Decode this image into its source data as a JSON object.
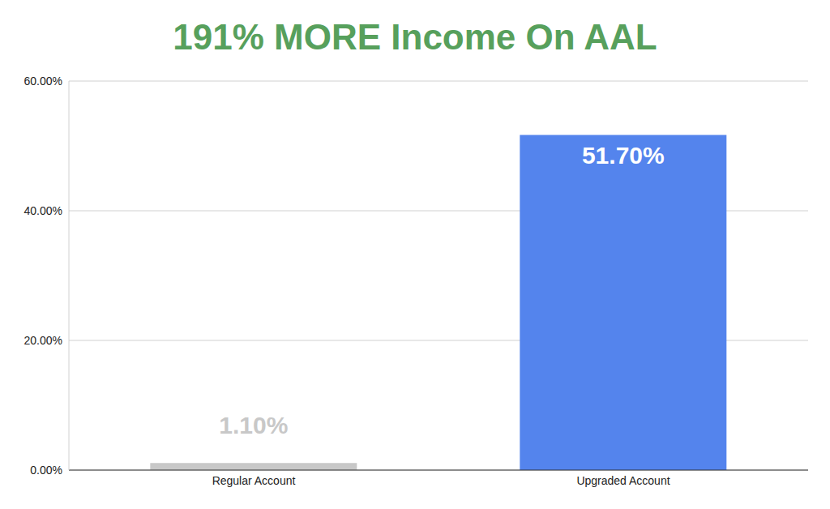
{
  "chart_data": {
    "type": "bar",
    "title": "191% MORE Income On AAL",
    "categories": [
      "Regular Account",
      "Upgraded Account"
    ],
    "values": [
      1.1,
      51.7
    ],
    "value_labels": [
      "1.10%",
      "51.70%"
    ],
    "colors": [
      "#c8c8c8",
      "#5484ed"
    ],
    "ylim": [
      0,
      60
    ],
    "yticks": [
      {
        "value": 0,
        "label": "0.00%"
      },
      {
        "value": 20,
        "label": "20.00%"
      },
      {
        "value": 40,
        "label": "40.00%"
      },
      {
        "value": 60,
        "label": "60.00%"
      }
    ],
    "grid": true,
    "data_labels": true
  }
}
